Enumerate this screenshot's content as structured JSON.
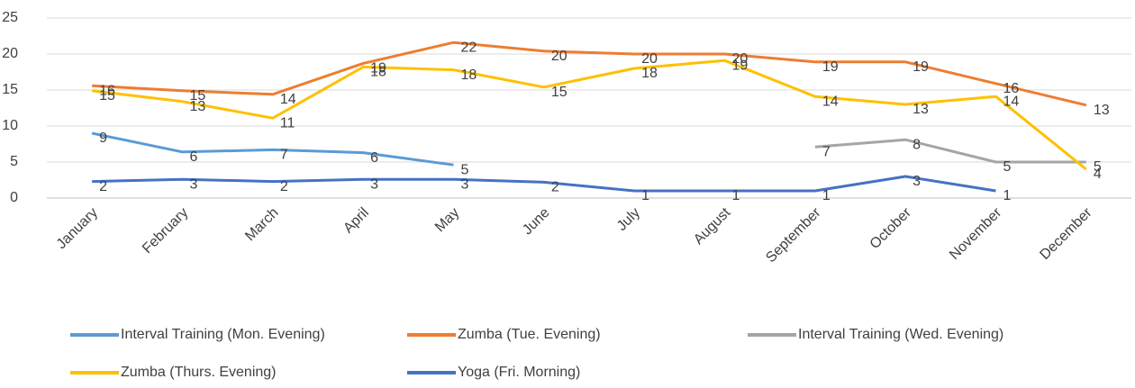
{
  "chart_data": {
    "type": "line",
    "categories": [
      "January",
      "February",
      "March",
      "April",
      "May",
      "June",
      "July",
      "August",
      "September",
      "October",
      "November",
      "December"
    ],
    "series": [
      {
        "name": "Interval Training (Mon. Evening)",
        "color": "#5b9bd5",
        "values": [
          9.0,
          6.4,
          6.7,
          6.3,
          4.6,
          null,
          null,
          null,
          null,
          null,
          null,
          null
        ],
        "value_labels": [
          "9",
          "6",
          "7",
          "6",
          "5",
          null,
          null,
          null,
          null,
          null,
          null,
          null
        ]
      },
      {
        "name": "Zumba (Tue. Evening)",
        "color": "#ed7d31",
        "values": [
          15.6,
          14.9,
          14.4,
          18.7,
          21.6,
          20.4,
          20.0,
          20.0,
          18.9,
          18.9,
          15.9,
          12.9
        ],
        "value_labels": [
          "16",
          "15",
          "14",
          "19",
          "22",
          "20",
          "20",
          "20",
          "19",
          "19",
          "16",
          "13"
        ]
      },
      {
        "name": "Interval Training (Wed. Evening)",
        "color": "#a5a5a5",
        "values": [
          null,
          null,
          null,
          null,
          null,
          null,
          null,
          null,
          7.1,
          8.1,
          5.0,
          5.0
        ],
        "value_labels": [
          null,
          null,
          null,
          null,
          null,
          null,
          null,
          null,
          "7",
          "8",
          "5",
          "5"
        ]
      },
      {
        "name": "Zumba (Thurs. Evening)",
        "color": "#ffc000",
        "values": [
          14.9,
          13.4,
          11.1,
          18.2,
          17.8,
          15.4,
          18.0,
          19.1,
          14.1,
          13.0,
          14.1,
          4.0
        ],
        "value_labels": [
          "15",
          "13",
          "11",
          "18",
          "18",
          "15",
          "18",
          "19",
          "14",
          "13",
          "14",
          "4"
        ]
      },
      {
        "name": "Yoga (Fri. Morning)",
        "color": "#4472c4",
        "values": [
          2.3,
          2.6,
          2.3,
          2.6,
          2.6,
          2.2,
          1.0,
          1.0,
          1.0,
          3.0,
          1.0,
          null
        ],
        "value_labels": [
          "2",
          "3",
          "2",
          "3",
          "3",
          "2",
          "1",
          "1",
          "1",
          "3",
          "1",
          null
        ]
      }
    ],
    "ylim": [
      0,
      25
    ],
    "yticks": [
      0,
      5,
      10,
      15,
      20,
      25
    ],
    "grid": true,
    "legend": "bottom"
  }
}
